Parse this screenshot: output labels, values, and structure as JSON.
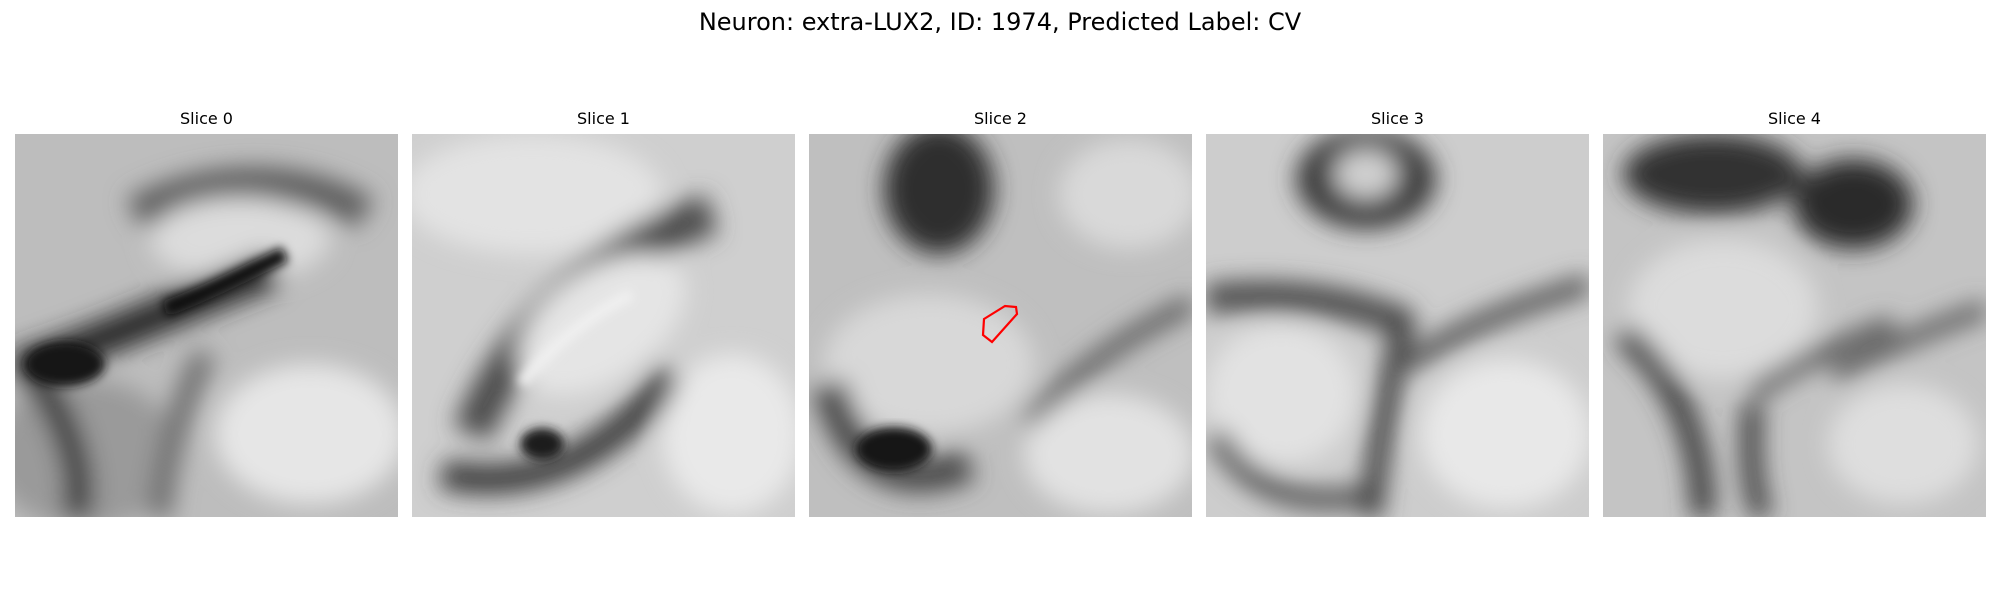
{
  "figure": {
    "title": "Neuron: extra-LUX2, ID: 1974, Predicted Label: CV"
  },
  "panels": [
    {
      "title": "Slice 0"
    },
    {
      "title": "Slice 1"
    },
    {
      "title": "Slice 2"
    },
    {
      "title": "Slice 3"
    },
    {
      "title": "Slice 4"
    }
  ],
  "colors": {
    "roi_outline": "#ff0000"
  }
}
